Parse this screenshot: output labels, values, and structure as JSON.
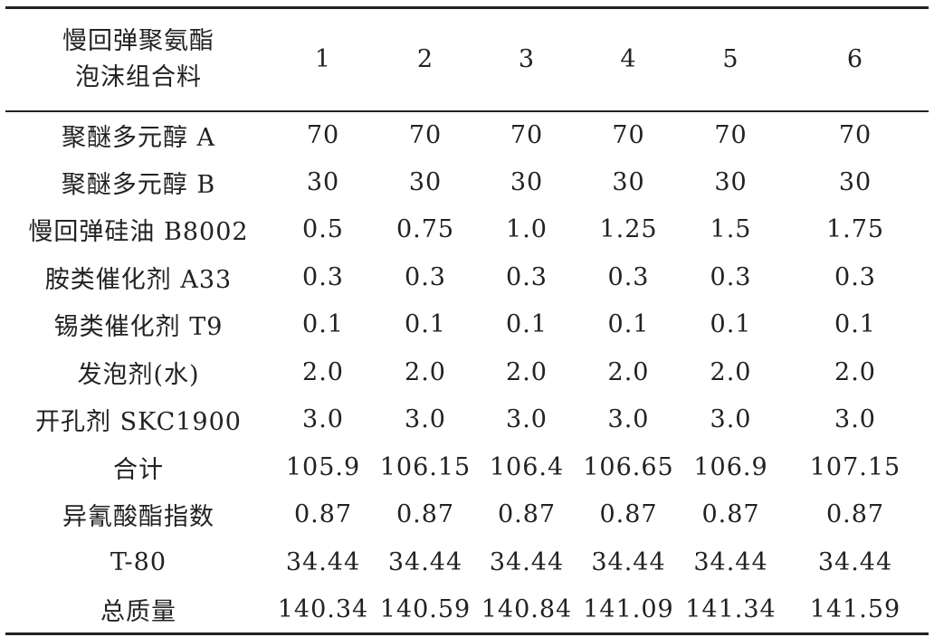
{
  "table": {
    "header": {
      "corner": [
        "慢回弹聚氨酯",
        "泡沫组合料"
      ],
      "columns": [
        "1",
        "2",
        "3",
        "4",
        "5",
        "6"
      ]
    },
    "rows": [
      [
        "聚醚多元醇 A",
        "70",
        "70",
        "70",
        "70",
        "70",
        "70"
      ],
      [
        "聚醚多元醇 B",
        "30",
        "30",
        "30",
        "30",
        "30",
        "30"
      ],
      [
        "慢回弹硅油 B8002",
        "0.5",
        "0.75",
        "1.0",
        "1.25",
        "1.5",
        "1.75"
      ],
      [
        "胺类催化剂 A33",
        "0.3",
        "0.3",
        "0.3",
        "0.3",
        "0.3",
        "0.3"
      ],
      [
        "锡类催化剂 T9",
        "0.1",
        "0.1",
        "0.1",
        "0.1",
        "0.1",
        "0.1"
      ],
      [
        "发泡剂(水)",
        "2.0",
        "2.0",
        "2.0",
        "2.0",
        "2.0",
        "2.0"
      ],
      [
        "开孔剂 SKC1900",
        "3.0",
        "3.0",
        "3.0",
        "3.0",
        "3.0",
        "3.0"
      ],
      [
        "合计",
        "105.9",
        "106.15",
        "106.4",
        "106.65",
        "106.9",
        "107.15"
      ],
      [
        "异氰酸酯指数",
        "0.87",
        "0.87",
        "0.87",
        "0.87",
        "0.87",
        "0.87"
      ],
      [
        "T-80",
        "34.44",
        "34.44",
        "34.44",
        "34.44",
        "34.44",
        "34.44"
      ],
      [
        "总质量",
        "140.34",
        "140.59",
        "140.84",
        "141.09",
        "141.34",
        "141.59"
      ]
    ]
  }
}
